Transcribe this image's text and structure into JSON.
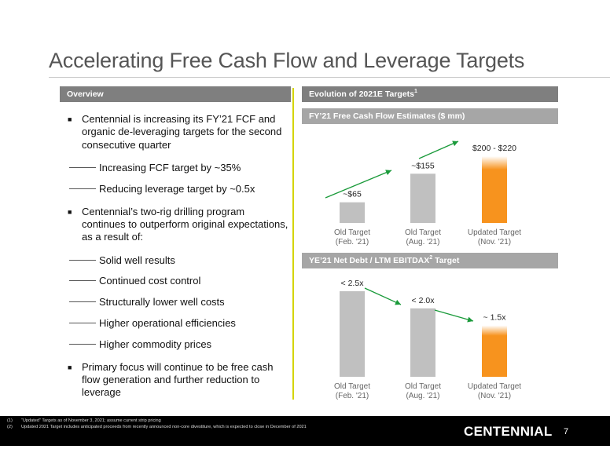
{
  "title": "Accelerating Free Cash Flow and Leverage Targets",
  "overview": {
    "header": "Overview",
    "bullets": [
      {
        "text": "Centennial is increasing its FY’21 FCF and organic de-leveraging targets for the second consecutive quarter",
        "subs": [
          "Increasing FCF target by ~35%",
          "Reducing leverage target by ~0.5x"
        ]
      },
      {
        "text": "Centennial’s two-rig drilling program continues to outperform original expectations, as a result of:",
        "subs": [
          "Solid well results",
          "Continued cost control",
          "Structurally lower well costs",
          "Higher operational efficiencies",
          "Higher commodity prices"
        ]
      },
      {
        "text": "Primary focus will continue to be free cash flow generation and further reduction to leverage",
        "subs": []
      }
    ]
  },
  "evolution_header": {
    "text": "Evolution of 2021E Targets",
    "sup": "1"
  },
  "fcf_header": "FY’21 Free Cash Flow Estimates ($ mm)",
  "lev_header": {
    "text": "YE’21 Net Debt / LTM EBITDAX",
    "sup": "2",
    "tail": " Target"
  },
  "colors": {
    "gray_bar": "#c0c0c0",
    "orange": "#f7931e",
    "arrow": "#1a9a3a",
    "rule": "#d4d400"
  },
  "chart_data": [
    {
      "type": "bar",
      "categories": [
        [
          "Old Target",
          "(Feb. '21)"
        ],
        [
          "Old Target",
          "(Aug. '21)"
        ],
        [
          "Updated Target",
          "(Nov. '21)"
        ]
      ],
      "values": [
        65,
        155,
        210
      ],
      "labels": [
        "~$65",
        "~$155",
        "$200 - $220"
      ],
      "highlight": [
        false,
        false,
        true
      ],
      "ylim": [
        0,
        220
      ]
    },
    {
      "type": "bar",
      "categories": [
        [
          "Old Target",
          "(Feb. '21)"
        ],
        [
          "Old Target",
          "(Aug. '21)"
        ],
        [
          "Updated Target",
          "(Nov. '21)"
        ]
      ],
      "values": [
        2.5,
        2.0,
        1.5
      ],
      "labels": [
        "< 2.5x",
        "< 2.0x",
        "~ 1.5x"
      ],
      "highlight": [
        false,
        false,
        true
      ],
      "ylim": [
        0,
        2.5
      ]
    }
  ],
  "footnotes": [
    {
      "num": "(1)",
      "text": "“Updated” Targets as of November 3, 2021; assume current strip pricing"
    },
    {
      "num": "(2)",
      "text": "Updated 2021 Target includes anticipated proceeds from recently announced non-core divestiture, which is expected to close in December of 2021"
    }
  ],
  "logo": "CENTENNIAL",
  "page_number": "7"
}
